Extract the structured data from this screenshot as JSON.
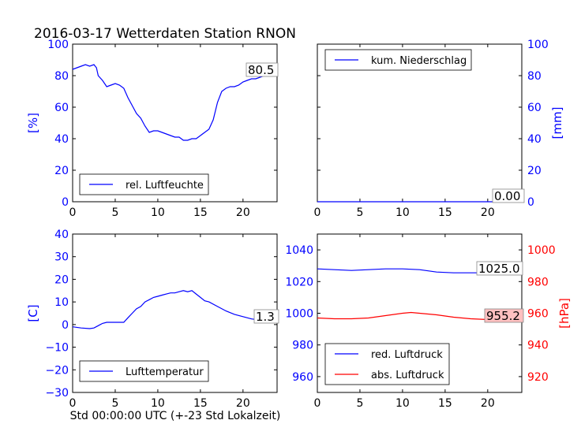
{
  "title": "2016-03-17 Wetterdaten Station RNON",
  "xlabel": "Std 00:00:00 UTC (+-23 Std Lokalzeit)",
  "colors": {
    "blue": "#0000ff",
    "red": "#ff0000",
    "ann_red_bg": "#ffc0c0"
  },
  "chart_data": [
    {
      "type": "line",
      "id": "humidity",
      "ylabel": "[%]",
      "xlim": [
        0,
        24
      ],
      "ylim": [
        0,
        100
      ],
      "xticks": [
        "0",
        "5",
        "10",
        "15",
        "20"
      ],
      "yticks": [
        "0",
        "20",
        "40",
        "60",
        "80",
        "100"
      ],
      "legend": "lower-left",
      "annotation": "80.5",
      "series": [
        {
          "name": "rel. Luftfeuchte",
          "color": "#0000ff",
          "x": [
            0,
            0.5,
            1,
            1.5,
            2,
            2.5,
            2.8,
            3,
            3.5,
            4,
            4.5,
            5,
            5.5,
            6,
            6.5,
            7,
            7.5,
            8,
            8.5,
            9,
            9.5,
            10,
            10.5,
            11,
            11.5,
            12,
            12.5,
            13,
            13.5,
            14,
            14.5,
            15,
            15.5,
            16,
            16.5,
            17,
            17.5,
            18,
            18.5,
            19,
            19.5,
            20,
            20.5,
            21,
            21.5,
            22,
            22.5,
            23,
            23.5,
            24
          ],
          "y": [
            84,
            85,
            86,
            87,
            86,
            87,
            85,
            80,
            77,
            73,
            74,
            75,
            74,
            72,
            66,
            61,
            56,
            53,
            48,
            44,
            45,
            45,
            44,
            43,
            42,
            41,
            41,
            39,
            39,
            40,
            40,
            42,
            44,
            46,
            52,
            63,
            70,
            72,
            73,
            73,
            74,
            76,
            77,
            78,
            78,
            79,
            80,
            80,
            81,
            80
          ]
        }
      ]
    },
    {
      "type": "line",
      "id": "precipitation",
      "ylabel": "[mm]",
      "xlim": [
        0,
        24
      ],
      "ylim": [
        0,
        100
      ],
      "xticks": [
        "0",
        "5",
        "10",
        "15",
        "20"
      ],
      "yticks": [
        "0",
        "20",
        "40",
        "60",
        "80",
        "100"
      ],
      "legend": "top-left",
      "annotation": "0.00",
      "series": [
        {
          "name": "kum. Niederschlag",
          "color": "#0000ff",
          "x": [
            0,
            24
          ],
          "y": [
            0,
            0
          ]
        }
      ]
    },
    {
      "type": "line",
      "id": "temperature",
      "ylabel": "[C]",
      "xlim": [
        0,
        24
      ],
      "ylim": [
        -30,
        40
      ],
      "xticks": [
        "0",
        "5",
        "10",
        "15",
        "20"
      ],
      "yticks": [
        "−30",
        "−20",
        "−10",
        "0",
        "10",
        "20",
        "30",
        "40"
      ],
      "legend": "lower-left",
      "annotation": "1.3",
      "series": [
        {
          "name": "Lufttemperatur",
          "color": "#0000ff",
          "x": [
            0,
            1,
            2,
            2.5,
            3,
            3.5,
            4,
            5,
            6,
            6.5,
            7,
            7.5,
            8,
            8.5,
            9,
            9.5,
            10,
            10.5,
            11,
            11.5,
            12,
            12.5,
            13,
            13.5,
            14,
            14.5,
            15,
            15.5,
            16,
            17,
            18,
            19,
            20,
            21,
            22,
            23,
            24
          ],
          "y": [
            -1,
            -1.5,
            -1.8,
            -1.5,
            -0.5,
            0.5,
            1,
            1,
            1,
            3,
            5,
            7,
            8,
            10,
            11,
            12,
            12.5,
            13,
            13.5,
            14,
            14,
            14.5,
            15,
            14.5,
            15,
            13.5,
            12,
            10.5,
            10,
            8,
            6,
            4.5,
            3.5,
            2.5,
            2,
            1.5,
            1.3
          ]
        }
      ]
    },
    {
      "type": "line",
      "id": "pressure",
      "ylabel": "[hPa]",
      "xlim": [
        0,
        24
      ],
      "ylim_left": [
        950,
        1050
      ],
      "ylim_right": [
        910,
        1010
      ],
      "xticks": [
        "0",
        "5",
        "10",
        "15",
        "20"
      ],
      "yticks_left": [
        "960",
        "980",
        "1000",
        "1020",
        "1040"
      ],
      "yticks_right": [
        "920",
        "940",
        "960",
        "980",
        "1000"
      ],
      "legend": "lower-left",
      "annotation_left": "1025.0",
      "annotation_right": "955.2",
      "series": [
        {
          "name": "red. Luftdruck",
          "color": "#0000ff",
          "axis": "left",
          "x": [
            0,
            2,
            4,
            6,
            8,
            10,
            12,
            14,
            16,
            18,
            20,
            22,
            24
          ],
          "y": [
            1028,
            1027.5,
            1027,
            1027.5,
            1028,
            1028,
            1027.5,
            1026,
            1025.5,
            1025.5,
            1025.5,
            1025.5,
            1025
          ]
        },
        {
          "name": "abs. Luftdruck",
          "color": "#ff0000",
          "axis": "right",
          "x": [
            0,
            2,
            4,
            6,
            8,
            10,
            11,
            12,
            14,
            16,
            18,
            20,
            22,
            24
          ],
          "y": [
            957,
            956.5,
            956.5,
            957,
            958.5,
            960,
            960.5,
            960,
            959,
            957.5,
            956.5,
            956,
            955.5,
            955.2
          ]
        }
      ]
    }
  ]
}
